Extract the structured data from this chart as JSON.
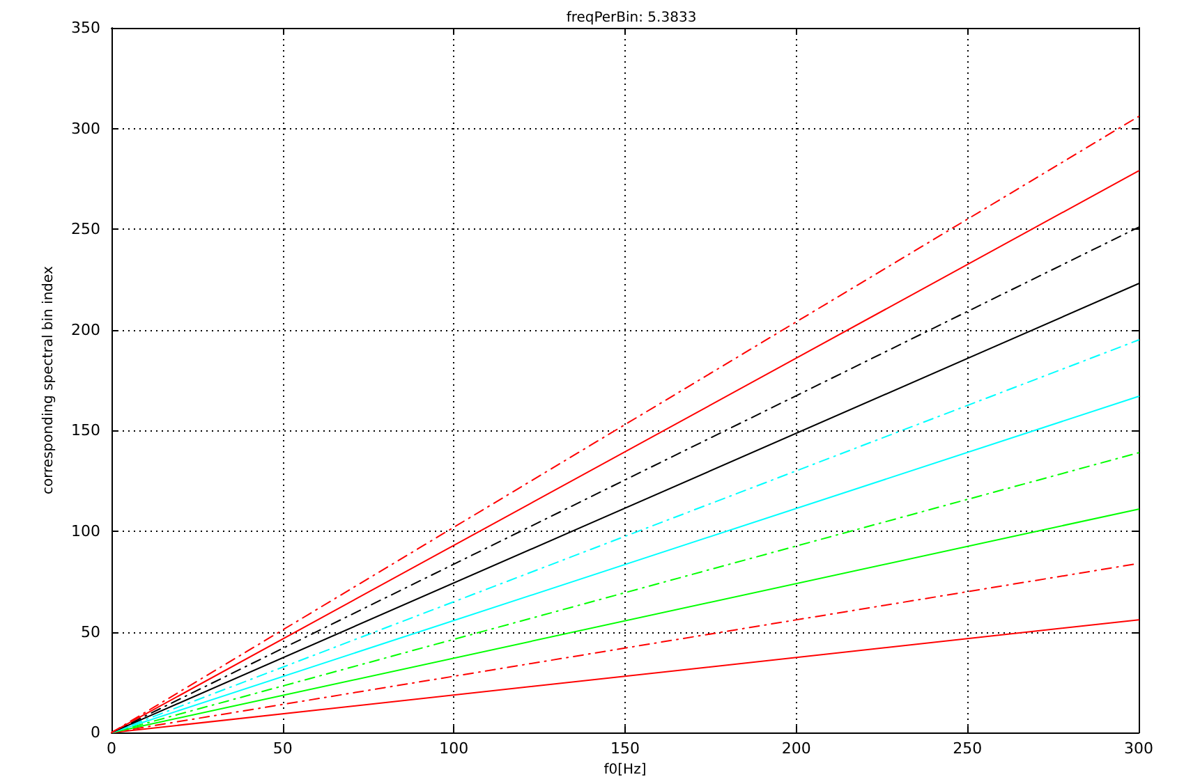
{
  "chart_data": {
    "type": "line",
    "title": "freqPerBin: 5.3833",
    "xlabel": "f0[Hz]",
    "ylabel": "corresponding spectral bin index",
    "x": [
      0,
      300
    ],
    "series": [
      {
        "color": "#ff0000",
        "values": [
          0,
          56
        ],
        "line_style": "solid"
      },
      {
        "color": "#ff0000",
        "values": [
          0,
          84
        ],
        "line_style": "dashdot"
      },
      {
        "color": "#00ff00",
        "values": [
          0,
          111
        ],
        "line_style": "solid"
      },
      {
        "color": "#00ff00",
        "values": [
          0,
          139
        ],
        "line_style": "dashdot"
      },
      {
        "color": "#00ffff",
        "values": [
          0,
          167
        ],
        "line_style": "solid"
      },
      {
        "color": "#00ffff",
        "values": [
          0,
          195
        ],
        "line_style": "dashdot"
      },
      {
        "color": "#000000",
        "values": [
          0,
          223
        ],
        "line_style": "solid"
      },
      {
        "color": "#000000",
        "values": [
          0,
          251
        ],
        "line_style": "dashdot"
      },
      {
        "color": "#ff0000",
        "values": [
          0,
          279
        ],
        "line_style": "solid"
      },
      {
        "color": "#ff0000",
        "values": [
          0,
          306
        ],
        "line_style": "dashdot"
      }
    ],
    "xlim": [
      0,
      300
    ],
    "xticks": [
      0,
      50,
      100,
      150,
      200,
      250,
      300
    ],
    "ylim": [
      0,
      350
    ],
    "yticks": [
      0,
      50,
      100,
      150,
      200,
      250,
      300,
      350
    ],
    "grid": true,
    "marker": "none"
  }
}
